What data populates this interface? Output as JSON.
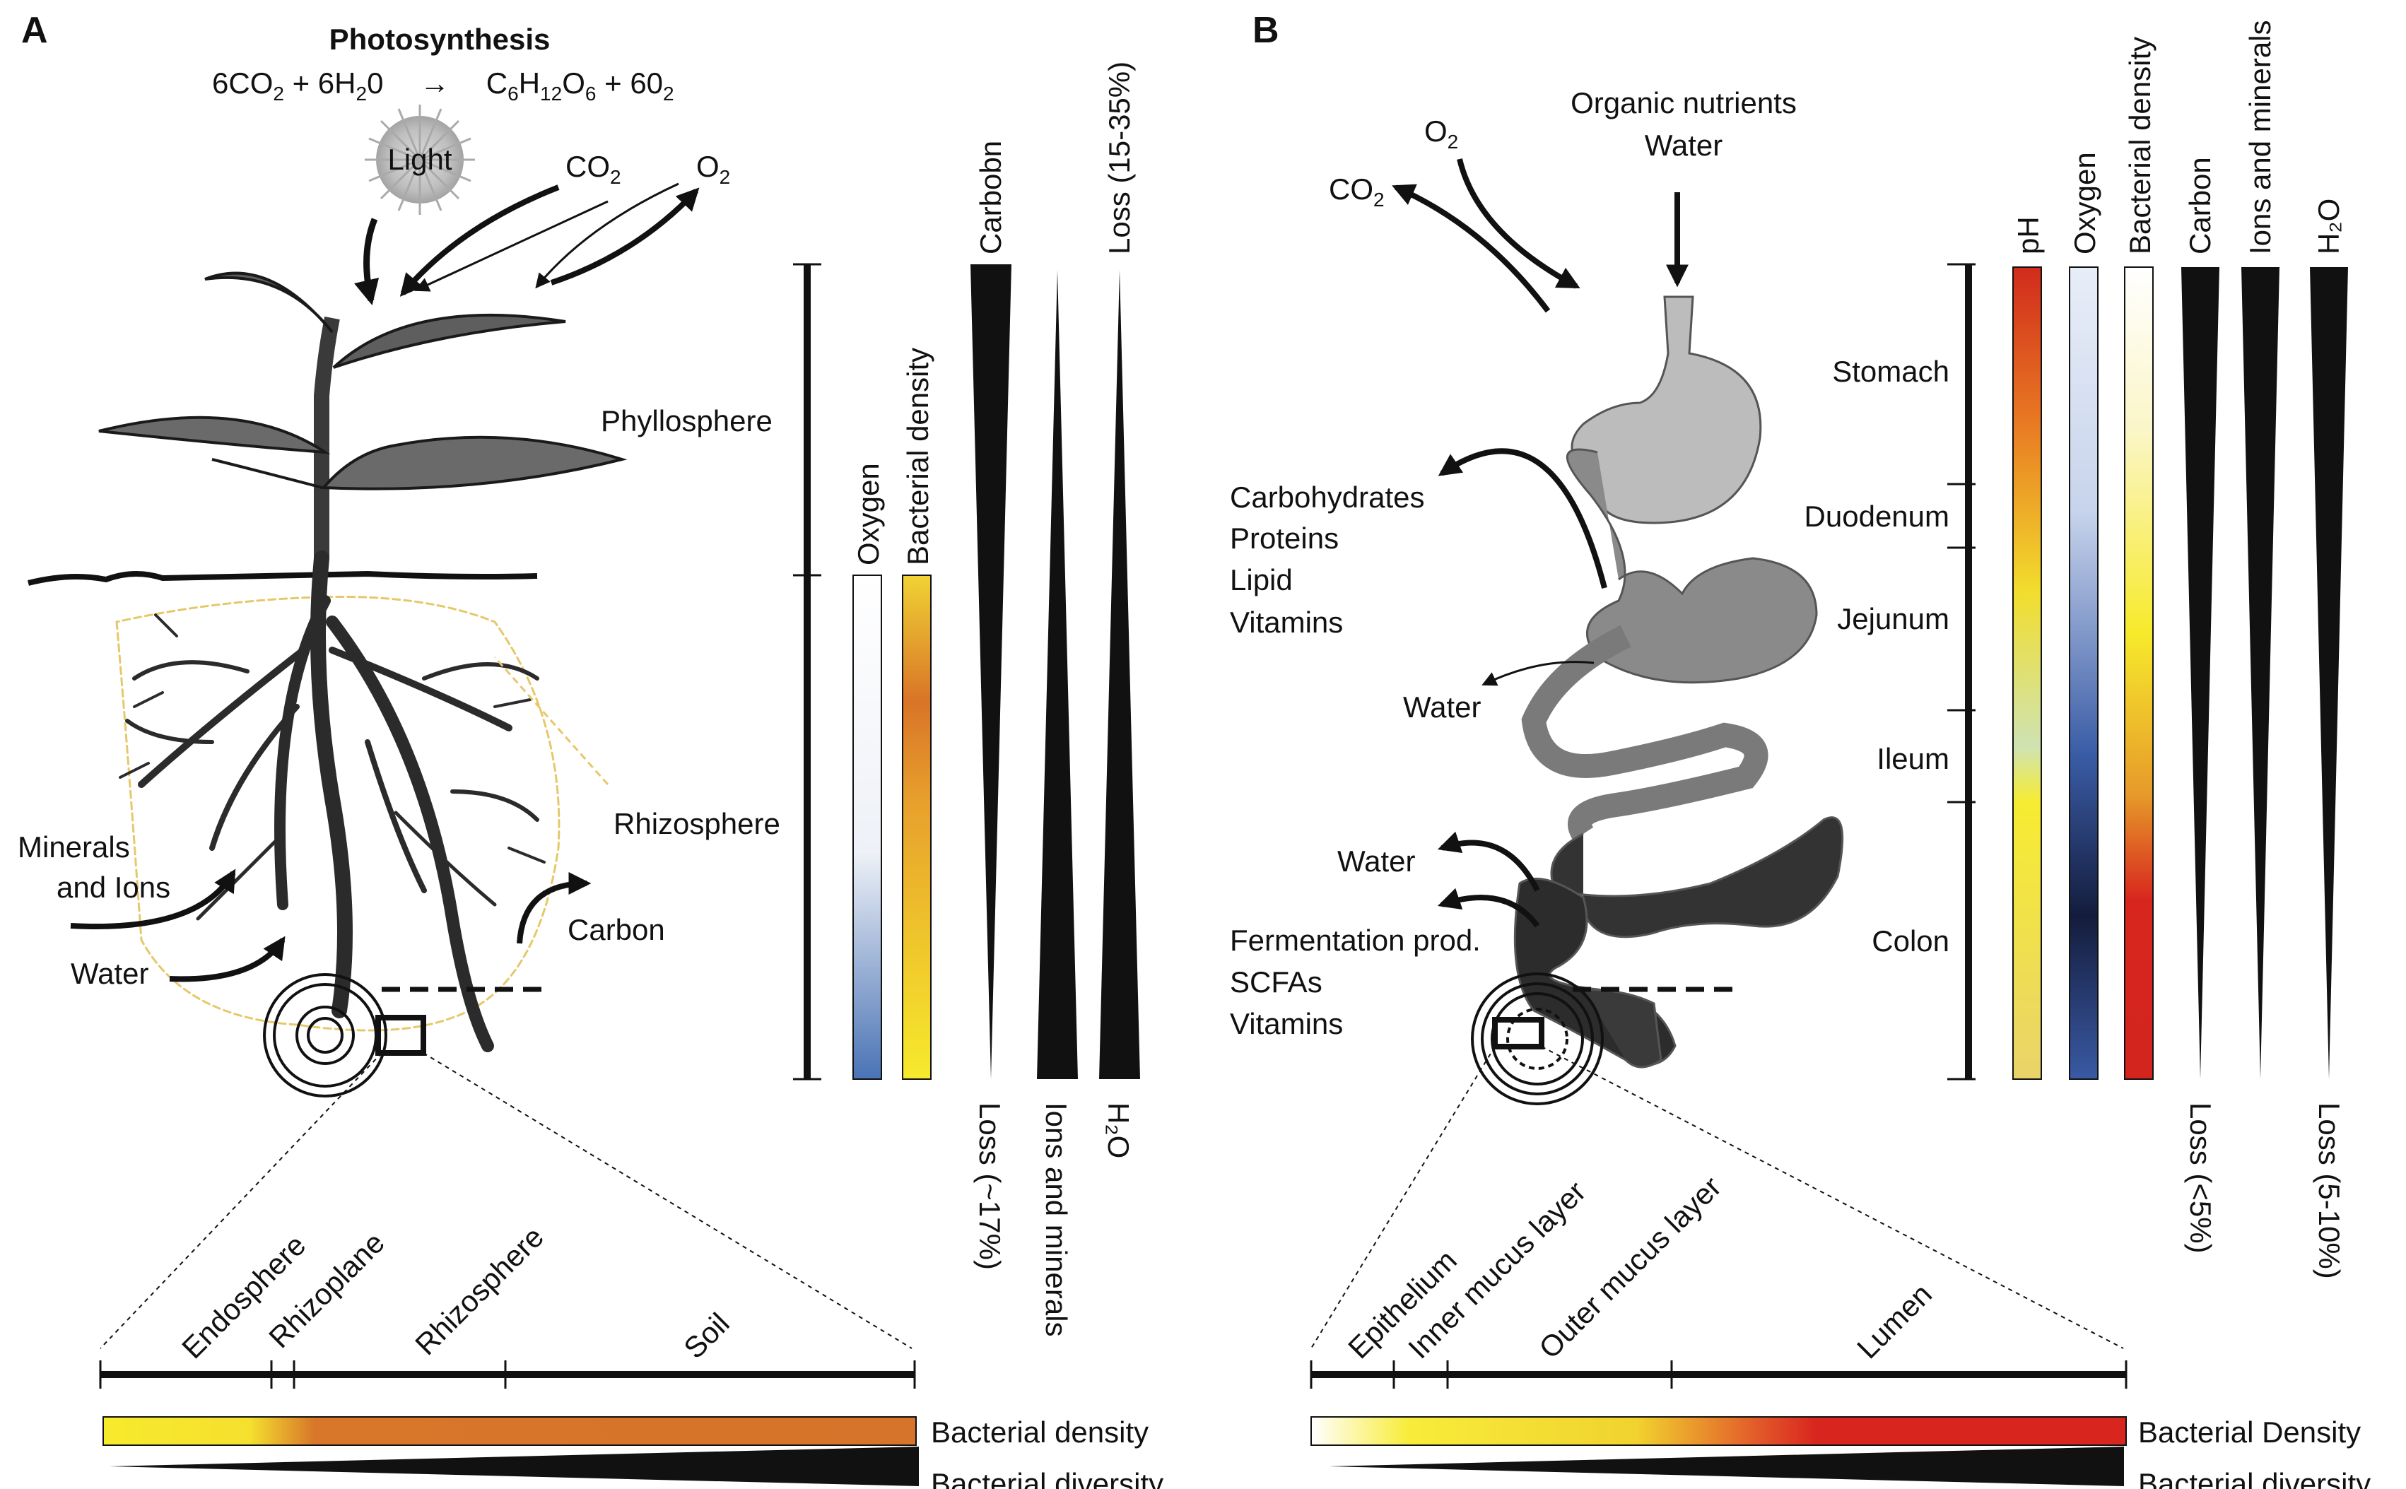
{
  "panel_a": {
    "letter": "A",
    "photosynthesis_title": "Photosynthesis",
    "equation": {
      "lhs_1": "6CO",
      "lhs_1_sub": "2",
      "lhs_2": " + 6H",
      "lhs_2_sub": "2",
      "lhs_3": "0",
      "arrow": "→",
      "rhs_1": "C",
      "rhs_1_sub": "6",
      "rhs_2": "H",
      "rhs_2_sub": "12",
      "rhs_3": "O",
      "rhs_3_sub": "6",
      "rhs_4": " + 60",
      "rhs_4_sub": "2"
    },
    "light": "Light",
    "co2": "CO",
    "co2_sub": "2",
    "o2": "O",
    "o2_sub": "2",
    "phyllosphere": "Phyllosphere",
    "rhizosphere": "Rhizosphere",
    "minerals_line1": "Minerals",
    "minerals_line2": "and Ions",
    "water": "Water",
    "carbon": "Carbon",
    "bars": {
      "oxygen": "Oxygen",
      "bacterial_density": "Bacterial density",
      "carbon": "Carbobn",
      "carbon_loss": "Loss (~17%)",
      "ions": "Ions and minerals",
      "water_loss": "Loss (15-35%)",
      "water": "H₂O"
    },
    "zoom_labels": [
      "Endosphere",
      "Rhizoplane",
      "Rhizosphere",
      "Soil"
    ],
    "density_label": "Bacterial density",
    "diversity_label": "Bacterial diversity",
    "colors": {
      "yellow": "#f7ea2c",
      "orange": "#d5742a",
      "blue": "#4a73b5"
    }
  },
  "panel_b": {
    "letter": "B",
    "o2": "O",
    "o2_sub": "2",
    "co2": "CO",
    "co2_sub": "2",
    "organic_line1": "Organic nutrients",
    "organic_line2": "Water",
    "absorbed": [
      "Carbohydrates",
      "Proteins",
      "Lipid",
      "Vitamins"
    ],
    "water_1": "Water",
    "water_2": "Water",
    "fermentation": [
      "Fermentation prod.",
      "SCFAs",
      "Vitamins"
    ],
    "segments": [
      "Stomach",
      "Duodenum",
      "Jejunum",
      "Ileum",
      "Colon"
    ],
    "bars": {
      "ph": "pH",
      "oxygen": "Oxygen",
      "bacterial_density": "Bacterial density",
      "carbon": "Carbon",
      "carbon_loss": "Loss (<5%)",
      "ions": "Ions and minerals",
      "water": "H₂O",
      "water_loss": "Loss (5-10%)"
    },
    "zoom_labels": [
      "Epithelium",
      "Inner mucus layer",
      "Outer mucus layer",
      "Lumen"
    ],
    "density_label": "Bacterial Density",
    "diversity_label": "Bacterial diversity",
    "colors": {
      "red": "#d8261e",
      "yellow": "#f7ea2c",
      "navy": "#161c3a"
    }
  }
}
